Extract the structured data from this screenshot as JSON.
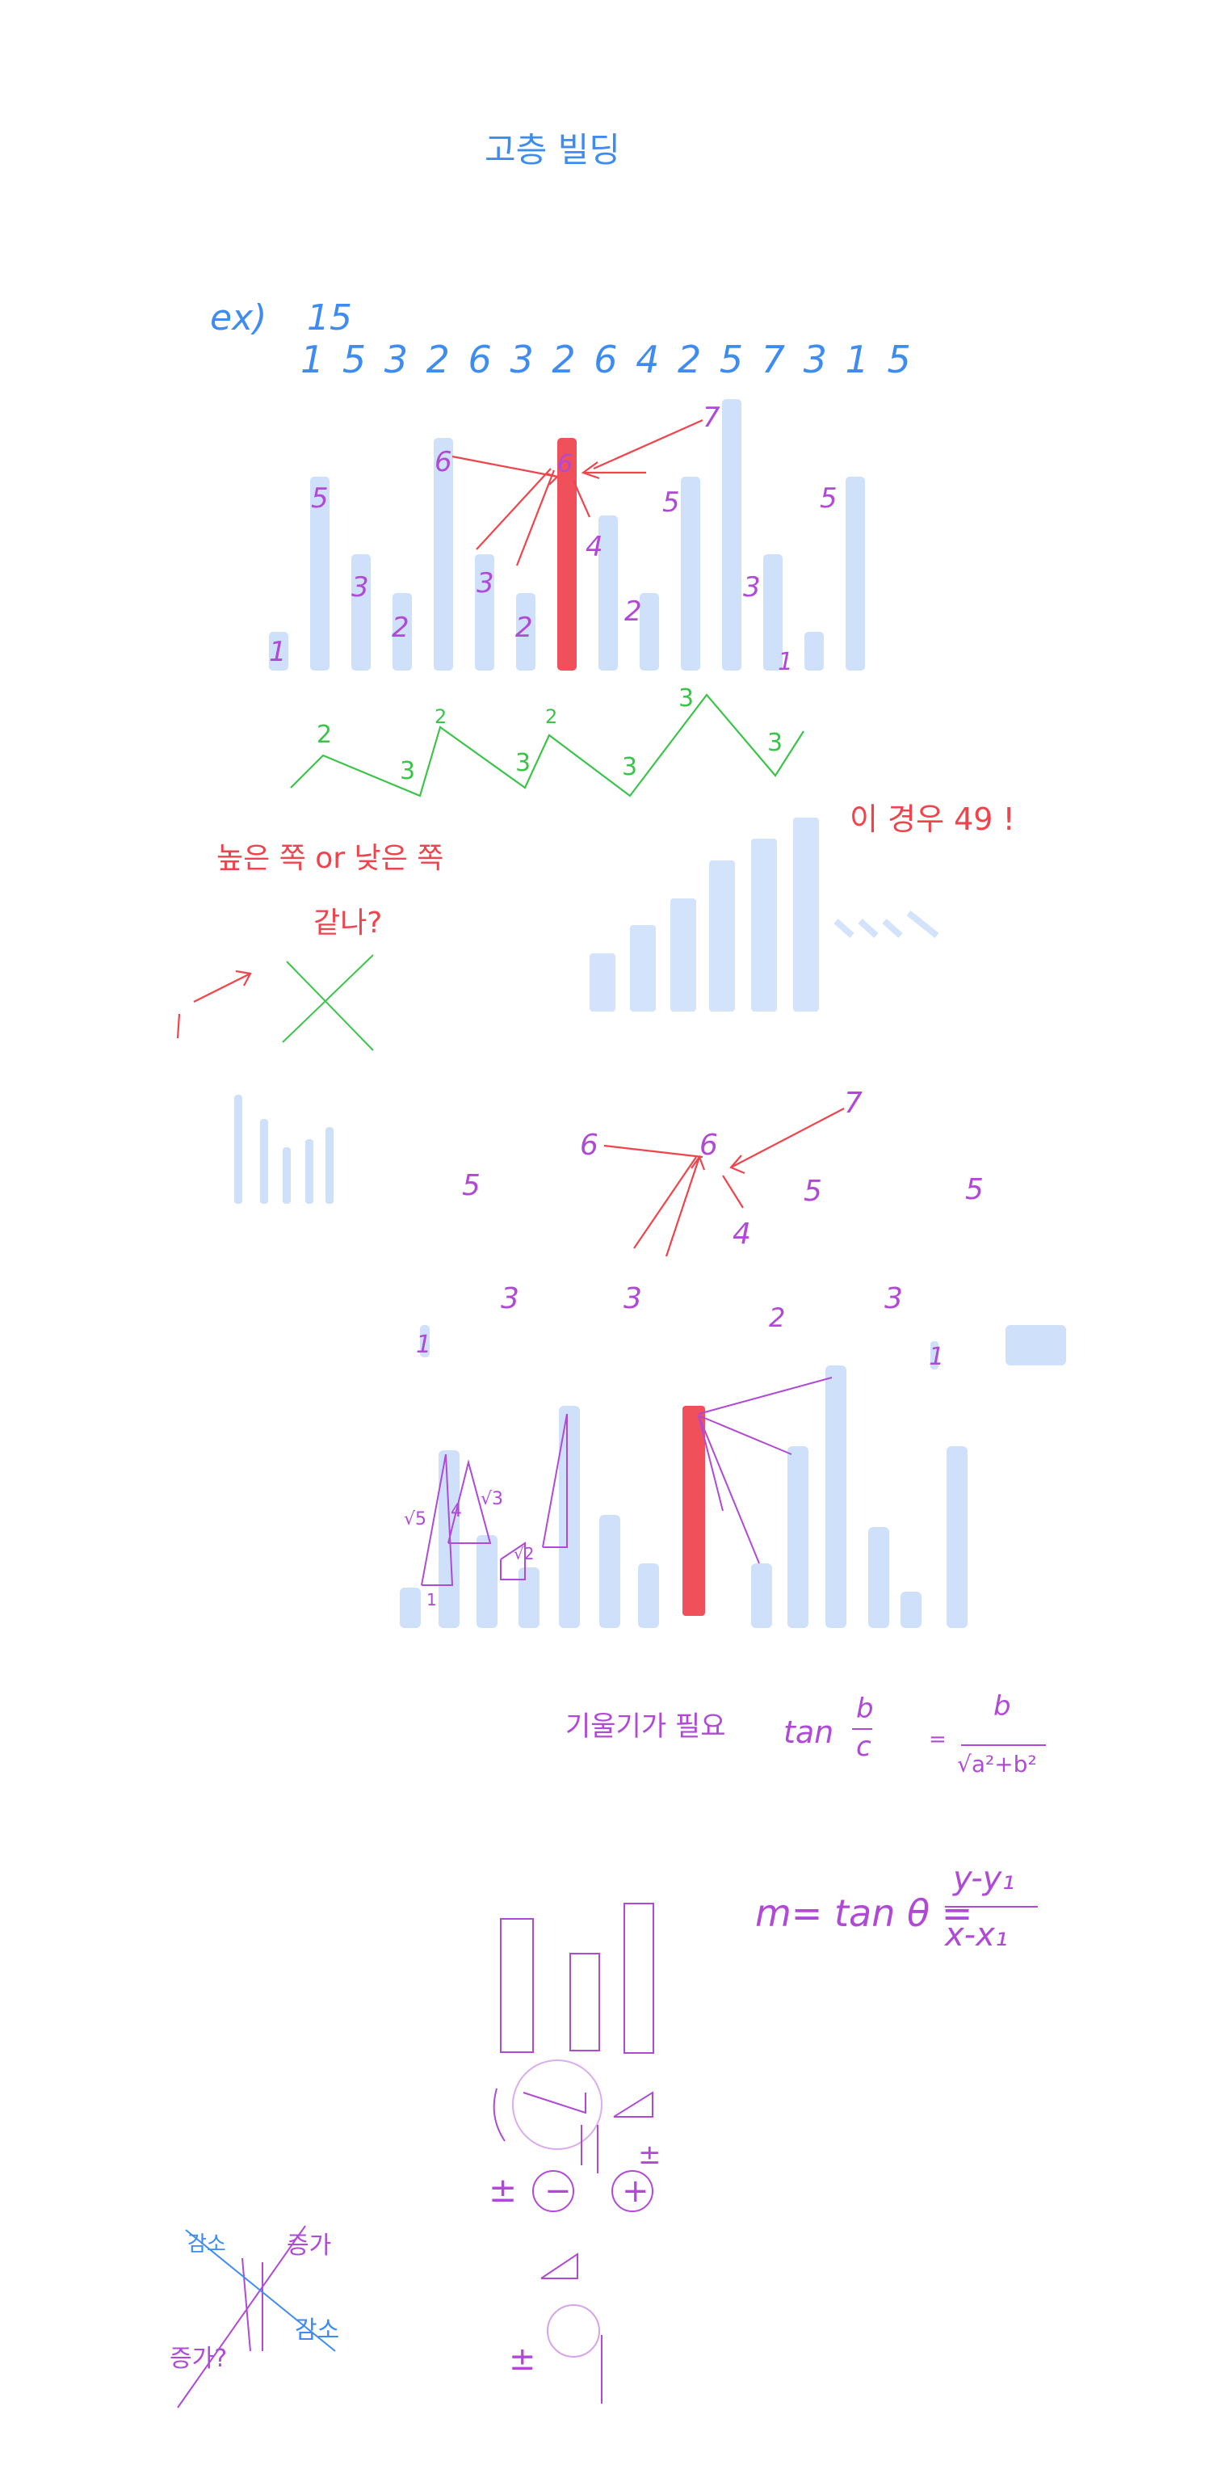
{
  "colors": {
    "blue_ink": "#3f8cf0",
    "purple_ink": "#b04ad6",
    "red_ink": "#f0444c",
    "green_ink": "#3bc44a",
    "bar_fill": "#cfe0fb",
    "highlight_bar": "#f0505a"
  },
  "title": "고층 빌딩",
  "example": {
    "label": "ex)",
    "n": "15",
    "sequence": "1 5 3 2 6 3 2 6 4 2 5 7 3 1 5",
    "heights": [
      1,
      5,
      3,
      2,
      6,
      3,
      2,
      6,
      4,
      2,
      5,
      7,
      3,
      1,
      5
    ],
    "highlight_index": 7
  },
  "bar_labels": [
    "1",
    "5",
    "3",
    "2",
    "6",
    "3",
    "2",
    "6",
    "4",
    "2",
    "5",
    "7",
    "3",
    "1",
    "5"
  ],
  "green_counts": [
    "2",
    "3",
    "2",
    "3",
    "2",
    "3",
    "3",
    "3"
  ],
  "notes": {
    "high_low": "높은 쪽 or 낮은 쪽",
    "same_question": "같나?",
    "arrow_one": "1",
    "case_49": "이 경우 49 !",
    "slope_needed": "기울기가 필요",
    "tan_word": "tan",
    "tan_numerator": "b",
    "tan_denominator": "c",
    "eq_sign": "=",
    "frac_numerator": "b",
    "frac_denominator": "√a²+b²",
    "m_formula_left": "m= tan θ =",
    "m_numerator": "y-y₁",
    "m_denominator": "x-x₁",
    "pm_left": "±",
    "pm_right": "±",
    "minus_circle": "−",
    "plus_circle": "+",
    "decrease_1": "감소",
    "increase_1": "증가",
    "increase_2": "증가?",
    "decrease_2": "감소",
    "eq_small": "=",
    "pm_bottom": "±"
  },
  "scatter_labels": {
    "top_row": [
      "6",
      "6",
      "7"
    ],
    "mid_row": [
      "5",
      "4",
      "5",
      "5"
    ],
    "low_row": [
      "3",
      "3",
      "2",
      "3"
    ],
    "ones": [
      "1",
      "1"
    ]
  },
  "triangle_labels": [
    "√5",
    "4",
    "√3",
    "√2",
    "1"
  ]
}
